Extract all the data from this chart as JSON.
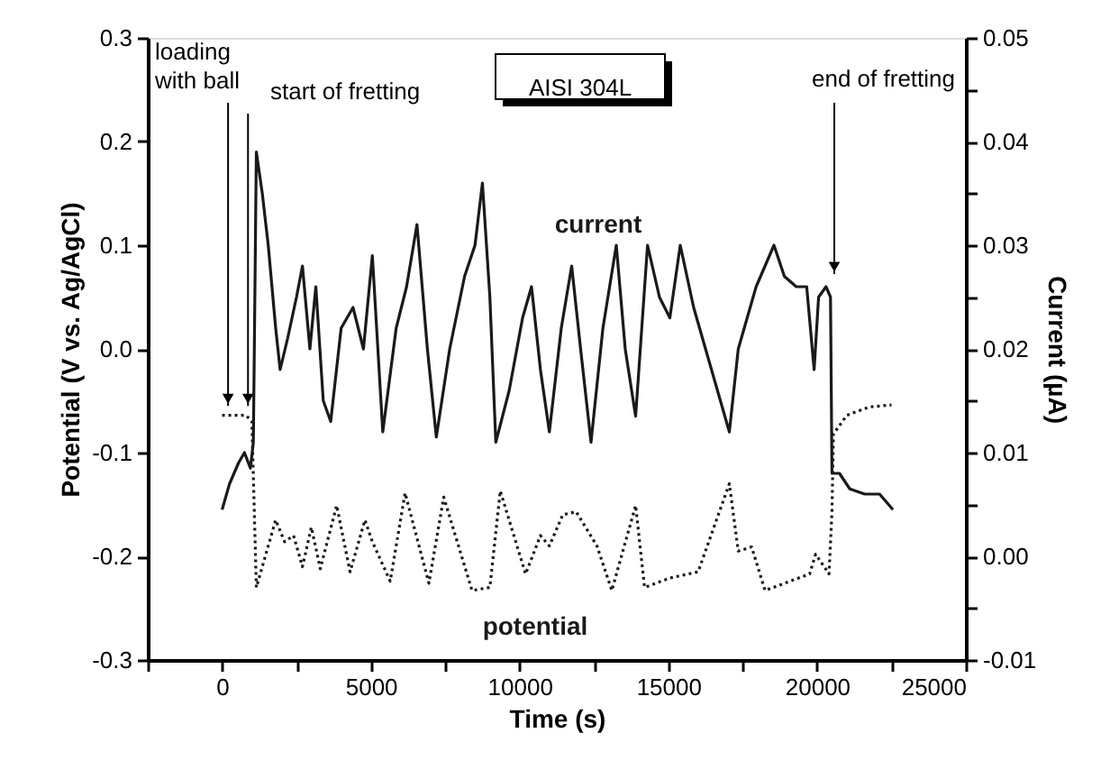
{
  "chart_data": {
    "type": "line",
    "xlabel": "Time (s)",
    "ylabel": "Potential (V vs. Ag/AgCl)",
    "y2label": "Current (µA)",
    "xlim": [
      -2500,
      25000
    ],
    "xticks": [
      {
        "value": -2500,
        "label": null
      },
      0,
      {
        "value": 2500,
        "label": null
      },
      5000,
      {
        "value": 7500,
        "label": null
      },
      10000,
      {
        "value": 12500,
        "label": null
      },
      15000,
      {
        "value": 17500,
        "label": null
      },
      20000,
      {
        "value": 22500,
        "label": null
      },
      25000
    ],
    "ylim": [
      -0.3,
      0.3
    ],
    "yticks": [
      -0.3,
      {
        "value": -0.25,
        "label": null
      },
      -0.2,
      {
        "value": -0.15,
        "label": null
      },
      -0.1,
      {
        "value": -0.05,
        "label": null
      },
      {
        "value": 0,
        "label": "0.0"
      },
      {
        "value": 0.05,
        "label": null
      },
      0.1,
      {
        "value": 0.15,
        "label": null
      },
      0.2,
      {
        "value": 0.25,
        "label": null
      },
      0.3
    ],
    "y2lim": [
      -0.01,
      0.05
    ],
    "y2ticks": [
      -0.01,
      {
        "value": -0.005,
        "label": null
      },
      {
        "value": 0,
        "label": "0.00"
      },
      {
        "value": 0.005,
        "label": null
      },
      0.01,
      {
        "value": 0.015,
        "label": null
      },
      0.02,
      {
        "value": 0.025,
        "label": null
      },
      0.03,
      {
        "value": 0.035,
        "label": null
      },
      0.04,
      {
        "value": 0.045,
        "label": null
      },
      0.05
    ],
    "grid": false,
    "marker": "none",
    "series": [
      {
        "name": "potential",
        "color": "#1a1a1a",
        "line_style": "dotted",
        "x": [
          0,
          800,
          1000,
          1150,
          1800,
          2100,
          2400,
          2700,
          3000,
          3300,
          3850,
          4300,
          4800,
          5050,
          5650,
          6150,
          6950,
          7450,
          8400,
          9000,
          9350,
          10200,
          10700,
          11000,
          11450,
          11900,
          12600,
          13100,
          13900,
          14200,
          15050,
          16000,
          17050,
          17350,
          17800,
          18250,
          19750,
          19950,
          20400,
          20500,
          20550,
          21000,
          21750,
          22500
        ],
        "values": [
          -0.064,
          -0.064,
          -0.07,
          -0.23,
          -0.165,
          -0.186,
          -0.18,
          -0.21,
          -0.172,
          -0.212,
          -0.151,
          -0.215,
          -0.165,
          -0.186,
          -0.224,
          -0.139,
          -0.226,
          -0.143,
          -0.233,
          -0.23,
          -0.137,
          -0.217,
          -0.18,
          -0.19,
          -0.16,
          -0.157,
          -0.19,
          -0.233,
          -0.151,
          -0.23,
          -0.221,
          -0.215,
          -0.13,
          -0.195,
          -0.191,
          -0.233,
          -0.217,
          -0.198,
          -0.217,
          -0.157,
          -0.082,
          -0.064,
          -0.056,
          -0.054
        ]
      },
      {
        "name": "current",
        "color": "#1a1a1a",
        "line_style": "solid",
        "axis": "y2",
        "x": [
          0,
          250,
          550,
          750,
          950,
          1050,
          1150,
          1350,
          1550,
          1800,
          1950,
          2200,
          2500,
          2700,
          2950,
          3150,
          3400,
          3650,
          4000,
          4400,
          4750,
          5050,
          5400,
          5850,
          6200,
          6550,
          6900,
          7200,
          7650,
          8150,
          8500,
          8750,
          9000,
          9200,
          9650,
          10100,
          10400,
          10700,
          11000,
          11400,
          11750,
          12050,
          12400,
          12800,
          13250,
          13550,
          13900,
          14300,
          14700,
          15050,
          15400,
          15850,
          16250,
          16750,
          17050,
          17350,
          17650,
          17950,
          18250,
          18550,
          18900,
          19300,
          19650,
          19900,
          20050,
          20300,
          20450,
          20500,
          20750,
          21100,
          21600,
          22100,
          22550
        ],
        "values": [
          0.0045,
          0.007,
          0.009,
          0.01,
          0.0085,
          0.011,
          0.039,
          0.035,
          0.03,
          0.022,
          0.018,
          0.021,
          0.025,
          0.028,
          0.02,
          0.026,
          0.015,
          0.013,
          0.022,
          0.024,
          0.02,
          0.029,
          0.012,
          0.022,
          0.026,
          0.032,
          0.02,
          0.0115,
          0.02,
          0.027,
          0.03,
          0.036,
          0.025,
          0.011,
          0.016,
          0.023,
          0.026,
          0.018,
          0.012,
          0.022,
          0.028,
          0.02,
          0.011,
          0.022,
          0.03,
          0.02,
          0.0135,
          0.03,
          0.025,
          0.023,
          0.03,
          0.024,
          0.02,
          0.015,
          0.012,
          0.02,
          0.023,
          0.026,
          0.028,
          0.03,
          0.027,
          0.026,
          0.026,
          0.018,
          0.025,
          0.026,
          0.025,
          0.008,
          0.008,
          0.0065,
          0.006,
          0.006,
          0.0045
        ]
      }
    ],
    "annotations": [
      {
        "text": "loading\nwith ball",
        "x": 200,
        "y": -0.055
      },
      {
        "text": "start of fretting",
        "x": 870,
        "y": -0.055
      },
      "AISI 304L",
      "end of fretting"
    ]
  }
}
